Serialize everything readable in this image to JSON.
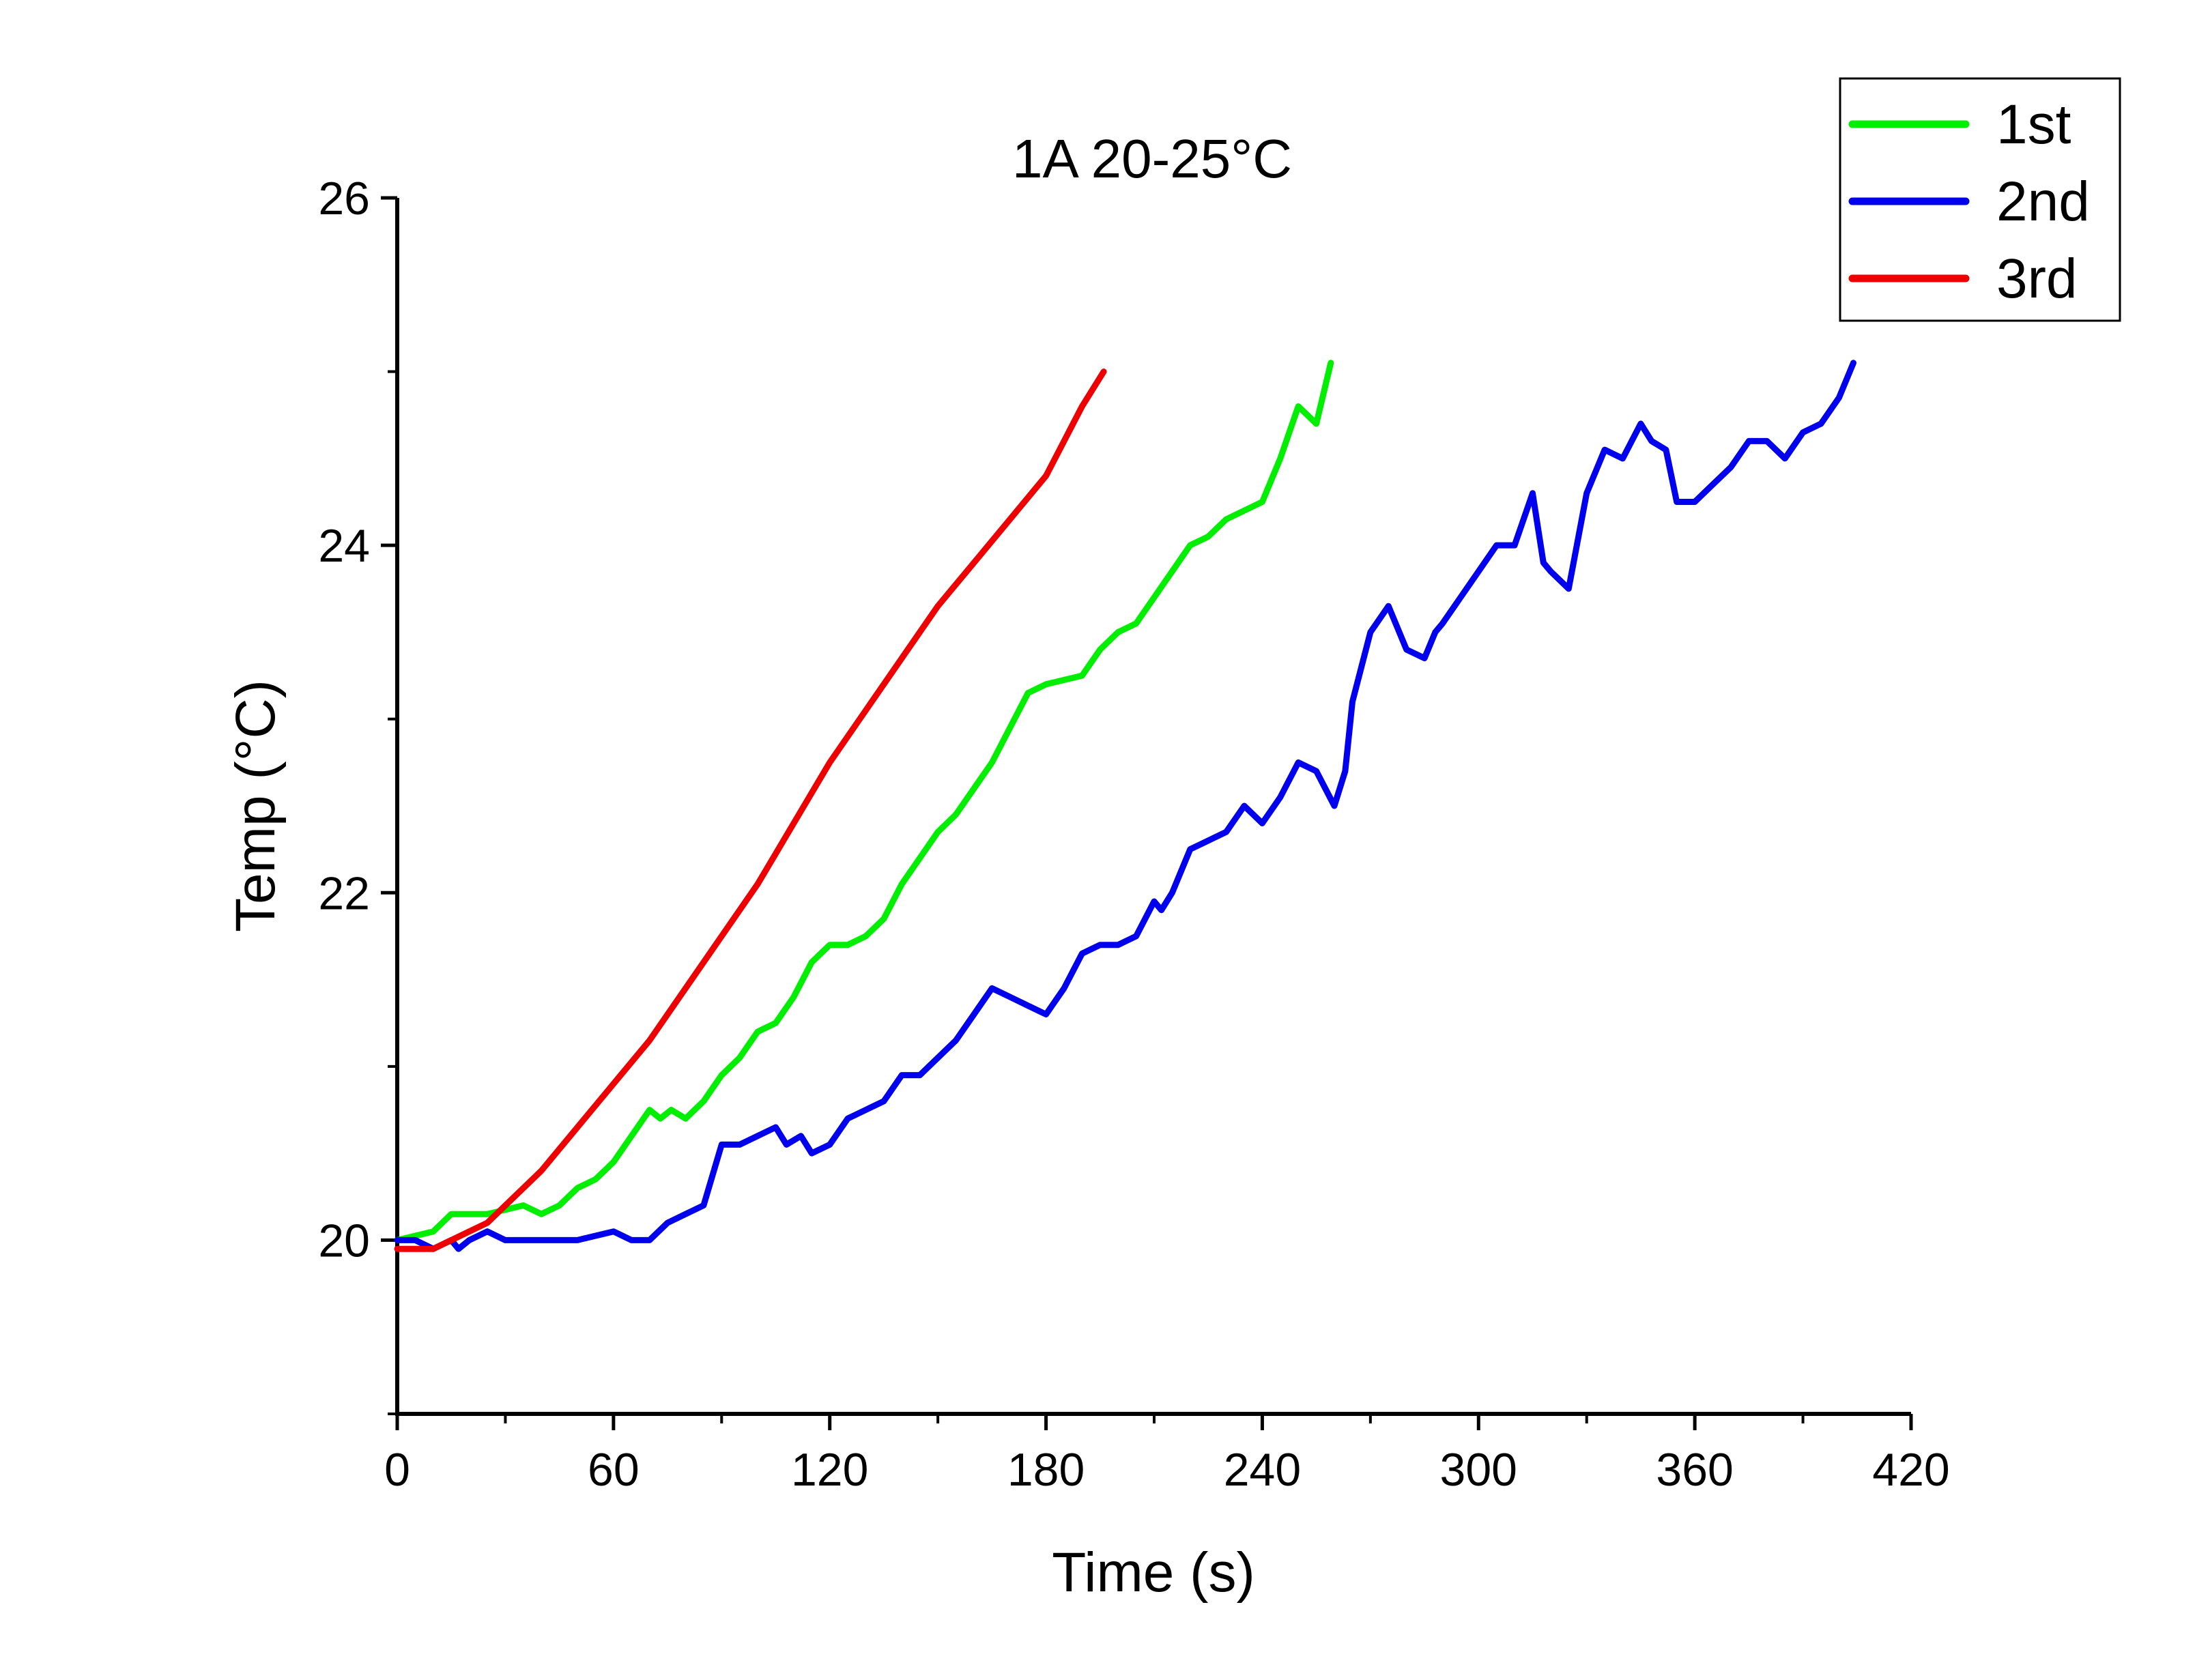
{
  "chart_data": {
    "type": "line",
    "title": "1A 20-25°C",
    "xlabel": "Time (s)",
    "ylabel": "Temp (°C)",
    "xlim": [
      0,
      420
    ],
    "ylim": [
      19,
      26
    ],
    "xticks": [
      0,
      60,
      120,
      180,
      240,
      300,
      360,
      420
    ],
    "xtick_labels": [
      "0",
      "60",
      "120",
      "180",
      "240",
      "300",
      "360",
      "420"
    ],
    "yticks": [
      20,
      22,
      24,
      26
    ],
    "ytick_labels": [
      "20",
      "22",
      "24",
      "26"
    ],
    "legend_position": "top-right",
    "grid": false,
    "series": [
      {
        "name": "1st",
        "color": "#00ee00",
        "x": [
          0,
          10,
          15,
          25,
          35,
          40,
          45,
          50,
          55,
          60,
          65,
          70,
          73,
          76,
          80,
          85,
          90,
          95,
          100,
          105,
          110,
          115,
          120,
          125,
          130,
          135,
          140,
          145,
          150,
          155,
          160,
          165,
          170,
          175,
          180,
          190,
          195,
          200,
          205,
          210,
          215,
          220,
          225,
          230,
          240,
          245,
          250,
          255,
          259
        ],
        "y": [
          20.0,
          20.05,
          20.15,
          20.15,
          20.2,
          20.15,
          20.2,
          20.3,
          20.35,
          20.45,
          20.6,
          20.75,
          20.7,
          20.75,
          20.7,
          20.8,
          20.95,
          21.05,
          21.2,
          21.25,
          21.4,
          21.6,
          21.7,
          21.7,
          21.75,
          21.85,
          22.05,
          22.2,
          22.35,
          22.45,
          22.6,
          22.75,
          22.95,
          23.15,
          23.2,
          23.25,
          23.4,
          23.5,
          23.55,
          23.7,
          23.85,
          24.0,
          24.05,
          24.15,
          24.25,
          24.5,
          24.8,
          24.7,
          25.05
        ]
      },
      {
        "name": "2nd",
        "color": "#0000ee",
        "x": [
          0,
          5,
          10,
          15,
          17,
          20,
          25,
          30,
          40,
          50,
          60,
          65,
          70,
          75,
          80,
          85,
          90,
          95,
          100,
          105,
          108,
          112,
          115,
          120,
          125,
          130,
          135,
          140,
          145,
          150,
          155,
          160,
          165,
          170,
          175,
          180,
          185,
          190,
          195,
          200,
          205,
          210,
          212,
          215,
          220,
          225,
          230,
          235,
          240,
          245,
          250,
          255,
          260,
          263,
          265,
          270,
          275,
          280,
          285,
          288,
          290,
          295,
          300,
          305,
          310,
          315,
          318,
          320,
          325,
          330,
          335,
          340,
          345,
          348,
          352,
          355,
          360,
          365,
          370,
          375,
          380,
          385,
          390,
          395,
          400,
          404
        ],
        "y": [
          20.0,
          20.0,
          19.95,
          20.0,
          19.95,
          20.0,
          20.05,
          20.0,
          20.0,
          20.0,
          20.05,
          20.0,
          20.0,
          20.1,
          20.15,
          20.2,
          20.55,
          20.55,
          20.6,
          20.65,
          20.55,
          20.6,
          20.5,
          20.55,
          20.7,
          20.75,
          20.8,
          20.95,
          20.95,
          21.05,
          21.15,
          21.3,
          21.45,
          21.4,
          21.35,
          21.3,
          21.45,
          21.65,
          21.7,
          21.7,
          21.75,
          21.95,
          21.9,
          22.0,
          22.25,
          22.3,
          22.35,
          22.5,
          22.4,
          22.55,
          22.75,
          22.7,
          22.5,
          22.7,
          23.1,
          23.5,
          23.65,
          23.4,
          23.35,
          23.5,
          23.55,
          23.7,
          23.85,
          24.0,
          24.0,
          24.3,
          23.9,
          23.85,
          23.75,
          24.3,
          24.55,
          24.5,
          24.7,
          24.6,
          24.55,
          24.25,
          24.25,
          24.35,
          24.45,
          24.6,
          24.6,
          24.5,
          24.65,
          24.7,
          24.85,
          25.05
        ]
      },
      {
        "name": "3rd",
        "color": "#ee0000",
        "x": [
          0,
          5,
          10,
          15,
          20,
          25,
          30,
          35,
          40,
          50,
          60,
          70,
          80,
          90,
          100,
          110,
          120,
          130,
          140,
          150,
          160,
          170,
          180,
          185,
          190,
          196
        ],
        "y": [
          19.95,
          19.95,
          19.95,
          20.0,
          20.05,
          20.1,
          20.2,
          20.3,
          20.4,
          20.65,
          20.9,
          21.15,
          21.45,
          21.75,
          22.05,
          22.4,
          22.75,
          23.05,
          23.35,
          23.65,
          23.9,
          24.15,
          24.4,
          24.6,
          24.8,
          25.0
        ]
      }
    ]
  }
}
